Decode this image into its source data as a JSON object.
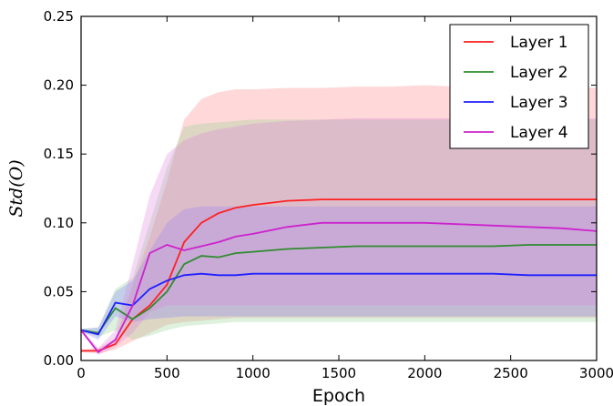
{
  "chart_data": {
    "type": "line",
    "xlabel": "Epoch",
    "ylabel": "Std(O)",
    "xlim": [
      0,
      3000
    ],
    "ylim": [
      0,
      0.25
    ],
    "xticks": [
      "0",
      "500",
      "1000",
      "1500",
      "2000",
      "2500",
      "3000"
    ],
    "yticks": [
      "0.00",
      "0.05",
      "0.10",
      "0.15",
      "0.20",
      "0.25"
    ],
    "grid": false,
    "legend_position": "top-right",
    "x": [
      0,
      100,
      200,
      300,
      400,
      500,
      600,
      700,
      800,
      900,
      1000,
      1200,
      1400,
      1600,
      1800,
      2000,
      2200,
      2400,
      2600,
      2800,
      3000
    ],
    "series": [
      {
        "name": "Layer 1",
        "color": "#ff2020",
        "fill": "#ff8080",
        "values": [
          0.007,
          0.007,
          0.012,
          0.03,
          0.04,
          0.055,
          0.086,
          0.1,
          0.107,
          0.111,
          0.113,
          0.116,
          0.117,
          0.117,
          0.117,
          0.117,
          0.117,
          0.117,
          0.117,
          0.117,
          0.117
        ],
        "upper": [
          0.008,
          0.009,
          0.016,
          0.055,
          0.09,
          0.13,
          0.175,
          0.19,
          0.195,
          0.197,
          0.197,
          0.198,
          0.198,
          0.199,
          0.199,
          0.2,
          0.199,
          0.2,
          0.199,
          0.199,
          0.198
        ],
        "lower": [
          0.006,
          0.005,
          0.008,
          0.014,
          0.02,
          0.026,
          0.028,
          0.029,
          0.03,
          0.031,
          0.031,
          0.031,
          0.031,
          0.031,
          0.031,
          0.031,
          0.031,
          0.031,
          0.031,
          0.031,
          0.031
        ]
      },
      {
        "name": "Layer 2",
        "color": "#2e8b2e",
        "fill": "#90d090",
        "values": [
          0.022,
          0.02,
          0.038,
          0.03,
          0.038,
          0.05,
          0.07,
          0.076,
          0.075,
          0.078,
          0.079,
          0.081,
          0.082,
          0.083,
          0.083,
          0.083,
          0.083,
          0.083,
          0.084,
          0.084,
          0.084
        ],
        "upper": [
          0.023,
          0.024,
          0.052,
          0.06,
          0.1,
          0.14,
          0.17,
          0.172,
          0.173,
          0.174,
          0.175,
          0.175,
          0.175,
          0.175,
          0.175,
          0.175,
          0.175,
          0.175,
          0.175,
          0.175,
          0.175
        ],
        "lower": [
          0.021,
          0.017,
          0.022,
          0.015,
          0.018,
          0.022,
          0.025,
          0.026,
          0.027,
          0.028,
          0.028,
          0.028,
          0.028,
          0.028,
          0.028,
          0.028,
          0.028,
          0.028,
          0.028,
          0.028,
          0.028
        ]
      },
      {
        "name": "Layer 3",
        "color": "#2020ff",
        "fill": "#8080ff",
        "values": [
          0.022,
          0.019,
          0.042,
          0.04,
          0.052,
          0.058,
          0.062,
          0.063,
          0.062,
          0.062,
          0.063,
          0.063,
          0.063,
          0.063,
          0.063,
          0.063,
          0.063,
          0.063,
          0.062,
          0.062,
          0.062
        ],
        "upper": [
          0.023,
          0.024,
          0.05,
          0.058,
          0.08,
          0.1,
          0.11,
          0.112,
          0.112,
          0.112,
          0.112,
          0.112,
          0.112,
          0.112,
          0.112,
          0.112,
          0.112,
          0.112,
          0.112,
          0.112,
          0.112
        ],
        "lower": [
          0.021,
          0.015,
          0.032,
          0.028,
          0.03,
          0.031,
          0.032,
          0.032,
          0.032,
          0.032,
          0.032,
          0.032,
          0.032,
          0.032,
          0.032,
          0.032,
          0.032,
          0.032,
          0.032,
          0.032,
          0.032
        ]
      },
      {
        "name": "Layer 4",
        "color": "#cc22cc",
        "fill": "#dd80dd",
        "values": [
          0.022,
          0.006,
          0.015,
          0.04,
          0.078,
          0.084,
          0.08,
          0.083,
          0.086,
          0.09,
          0.092,
          0.097,
          0.1,
          0.1,
          0.1,
          0.1,
          0.099,
          0.098,
          0.097,
          0.096,
          0.094
        ],
        "upper": [
          0.023,
          0.009,
          0.022,
          0.07,
          0.12,
          0.15,
          0.16,
          0.165,
          0.168,
          0.17,
          0.172,
          0.174,
          0.175,
          0.176,
          0.176,
          0.176,
          0.176,
          0.176,
          0.176,
          0.176,
          0.176
        ],
        "lower": [
          0.021,
          0.004,
          0.01,
          0.02,
          0.035,
          0.04,
          0.04,
          0.04,
          0.04,
          0.04,
          0.04,
          0.04,
          0.04,
          0.04,
          0.04,
          0.04,
          0.04,
          0.04,
          0.04,
          0.04,
          0.04
        ]
      }
    ]
  }
}
